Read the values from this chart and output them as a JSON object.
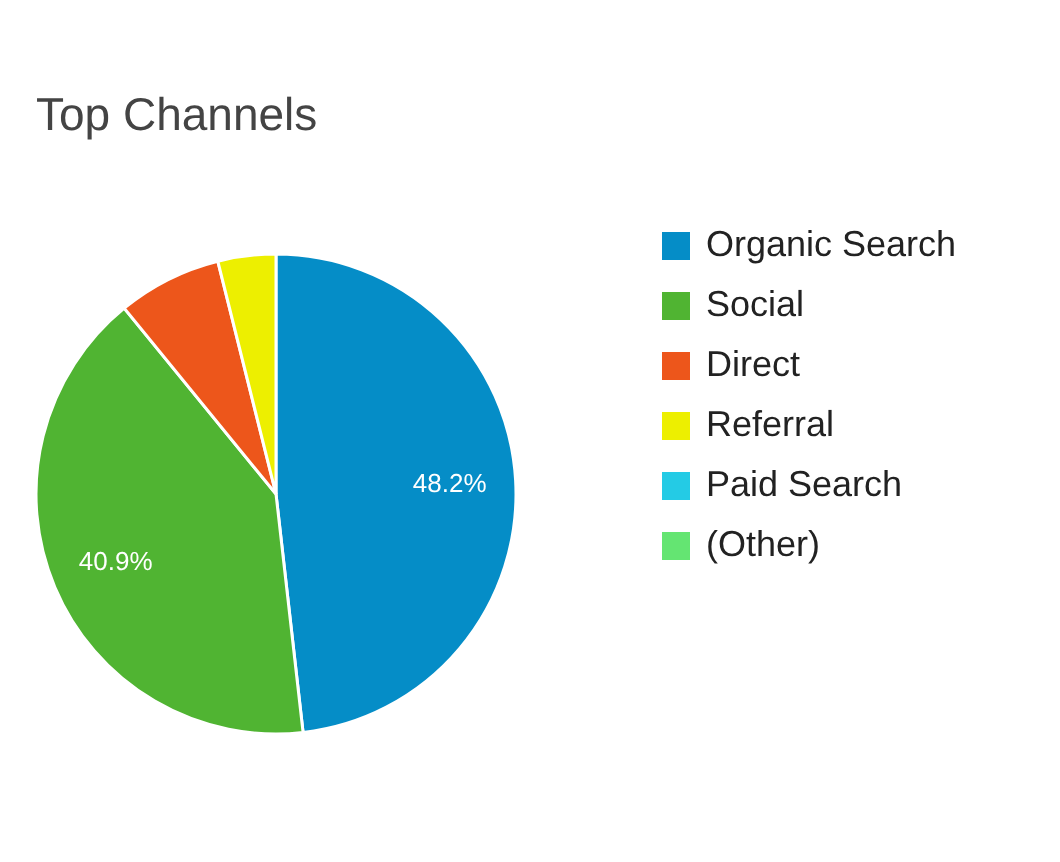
{
  "chart_data": {
    "type": "pie",
    "title": "Top Channels",
    "categories": [
      "Organic Search",
      "Social",
      "Direct",
      "Referral",
      "Paid Search",
      "(Other)"
    ],
    "values": [
      48.2,
      40.9,
      7.0,
      3.9,
      null,
      null
    ],
    "colors": [
      "#058dc7",
      "#50b432",
      "#ed561b",
      "#edef00",
      "#24cbe5",
      "#64e572"
    ],
    "value_labels": [
      "48.2%",
      "40.9%",
      null,
      null,
      null,
      null
    ],
    "legend": "right"
  }
}
